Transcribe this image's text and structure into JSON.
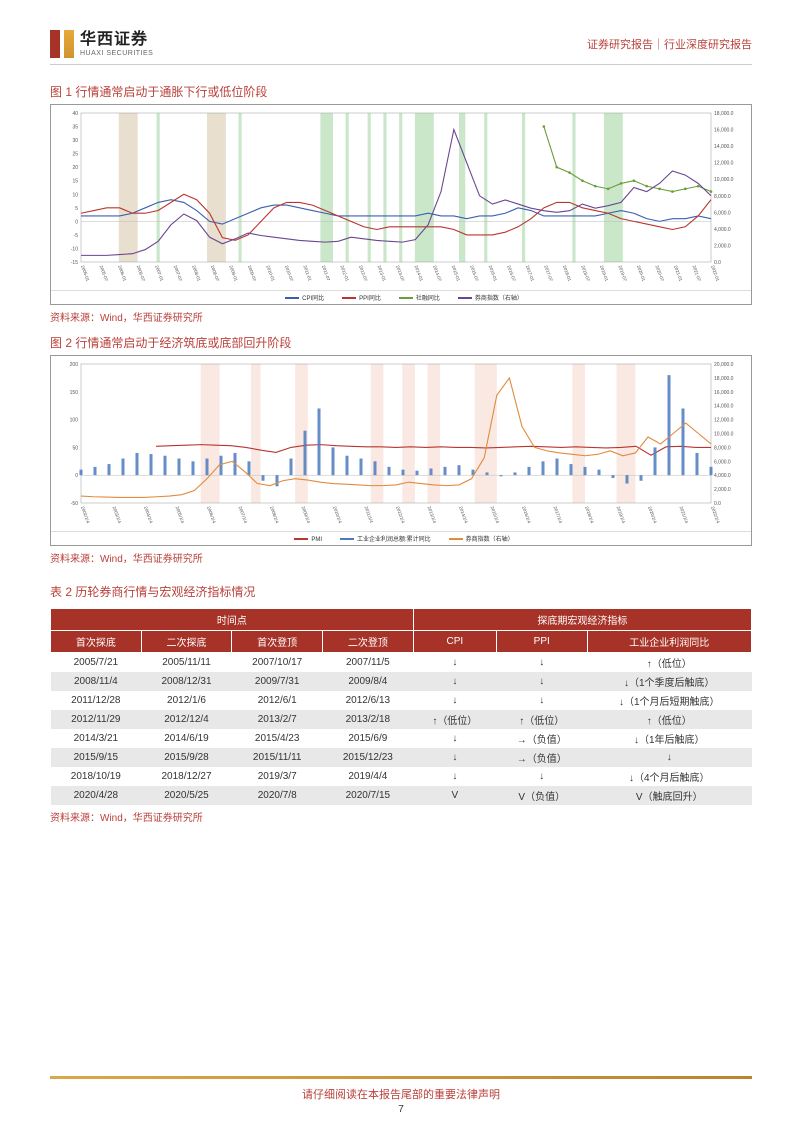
{
  "header": {
    "logo_cn": "华西证券",
    "logo_en": "HUAXI SECURITIES",
    "doc_type": "证券研究报告｜行业深度研究报告"
  },
  "fig1": {
    "title": "图 1  行情通常启动于通胀下行或低位阶段",
    "source": "资料来源：Wind，华西证券研究所",
    "left_axis": {
      "min": -15,
      "max": 40,
      "ticks": [
        -15,
        -10,
        -5,
        0,
        5,
        10,
        15,
        20,
        25,
        30,
        35,
        40
      ]
    },
    "right_axis": {
      "min": 0,
      "max": 18000,
      "ticks": [
        0,
        2000,
        4000,
        6000,
        8000,
        10000,
        12000,
        14000,
        16000,
        18000
      ]
    },
    "x_labels": [
      "2005-01",
      "2005-07",
      "2006-01",
      "2006-07",
      "2007-01",
      "2007-07",
      "2008-01",
      "2008-07",
      "2009-01",
      "2009-07",
      "2010-01",
      "2010-07",
      "2011-01",
      "2011-07",
      "2012-01",
      "2012-07",
      "2013-01",
      "2013-07",
      "2014-01",
      "2014-07",
      "2015-01",
      "2015-07",
      "2016-01",
      "2016-07",
      "2017-01",
      "2017-07",
      "2018-01",
      "2018-07",
      "2019-01",
      "2019-07",
      "2020-01",
      "2020-07",
      "2021-01",
      "2021-07",
      "2022-01"
    ],
    "shade_brown": [
      [
        0.06,
        0.09
      ],
      [
        0.2,
        0.23
      ]
    ],
    "shade_green": [
      [
        0.12,
        0.125
      ],
      [
        0.25,
        0.255
      ],
      [
        0.38,
        0.4
      ],
      [
        0.42,
        0.425
      ],
      [
        0.455,
        0.46
      ],
      [
        0.48,
        0.485
      ],
      [
        0.505,
        0.51
      ],
      [
        0.53,
        0.56
      ],
      [
        0.6,
        0.61
      ],
      [
        0.64,
        0.645
      ],
      [
        0.7,
        0.705
      ],
      [
        0.78,
        0.785
      ],
      [
        0.83,
        0.86
      ]
    ],
    "series": {
      "cpi": {
        "color": "#3a5fb0",
        "label": "CPI同比",
        "values": [
          2,
          2,
          2,
          2,
          3,
          5,
          7,
          8,
          7,
          4,
          0,
          -1,
          1,
          3,
          5,
          6,
          6,
          5,
          4,
          3,
          2,
          2,
          2,
          2,
          2,
          2,
          2,
          3,
          2,
          2,
          1,
          2,
          2,
          3,
          5,
          4,
          2,
          2,
          2,
          2,
          2,
          3,
          4,
          3,
          1,
          0,
          1,
          1,
          2,
          1
        ]
      },
      "ppi": {
        "color": "#b93530",
        "label": "PPI同比",
        "values": [
          3,
          4,
          5,
          5,
          3,
          3,
          4,
          7,
          10,
          8,
          3,
          -6,
          -7,
          -5,
          0,
          5,
          7,
          7,
          6,
          4,
          2,
          0,
          -2,
          -3,
          -2,
          -2,
          -2,
          -2,
          -2,
          -3,
          -5,
          -5,
          -5,
          -4,
          -2,
          1,
          5,
          7,
          7,
          5,
          4,
          3,
          1,
          0,
          -1,
          -2,
          -3,
          -2,
          2,
          8
        ]
      },
      "social": {
        "color": "#6a9e3a",
        "label": "社融同比",
        "values": [
          null,
          null,
          null,
          null,
          null,
          null,
          null,
          null,
          null,
          null,
          null,
          null,
          null,
          null,
          null,
          null,
          null,
          null,
          null,
          null,
          null,
          null,
          null,
          null,
          null,
          null,
          null,
          null,
          null,
          null,
          null,
          null,
          null,
          null,
          null,
          null,
          35,
          20,
          18,
          15,
          13,
          12,
          14,
          15,
          13,
          12,
          11,
          12,
          13,
          11
        ]
      },
      "index": {
        "color": "#6a4691",
        "label": "券商指数（右轴）",
        "values": [
          800,
          800,
          800,
          900,
          1000,
          1500,
          2500,
          4500,
          5800,
          5000,
          3000,
          2200,
          2800,
          3500,
          3200,
          3000,
          2800,
          2600,
          2500,
          2400,
          2500,
          3000,
          2800,
          2600,
          2500,
          2400,
          2700,
          4500,
          8500,
          16000,
          12000,
          8000,
          7000,
          7500,
          7000,
          6500,
          6200,
          6000,
          6200,
          7000,
          6500,
          6800,
          7200,
          9000,
          8500,
          9500,
          11000,
          10500,
          9500,
          8000
        ]
      }
    },
    "legend_items": [
      "CPI同比",
      "PPI同比",
      "社融同比",
      "券商指数（右轴）"
    ]
  },
  "fig2": {
    "title": "图 2  行情通常启动于经济筑底或底部回升阶段",
    "source": "资料来源：Wind，华西证券研究所",
    "left_axis": {
      "min": -50,
      "max": 200,
      "ticks": [
        -50,
        0,
        50,
        100,
        150,
        200
      ]
    },
    "right_axis": {
      "min": 0,
      "max": 20000,
      "ticks": [
        0,
        2000,
        4000,
        6000,
        8000,
        10000,
        12000,
        14000,
        16000,
        18000,
        20000
      ]
    },
    "x_labels": [
      "2002/1/4",
      "2003/1/4",
      "2004/1/4",
      "2005/1/4",
      "2006/1/4",
      "2007/1/4",
      "2008/1/4",
      "2009/1/4",
      "2010/1/4",
      "2011/1/4",
      "2012/1/4",
      "2013/1/4",
      "2014/1/4",
      "2015/1/4",
      "2016/1/4",
      "2017/1/4",
      "2018/1/4",
      "2019/1/4",
      "2020/1/4",
      "2021/1/4",
      "2022/1/4"
    ],
    "shade_pink": [
      [
        0.19,
        0.22
      ],
      [
        0.27,
        0.285
      ],
      [
        0.34,
        0.36
      ],
      [
        0.46,
        0.48
      ],
      [
        0.51,
        0.53
      ],
      [
        0.55,
        0.57
      ],
      [
        0.625,
        0.66
      ],
      [
        0.78,
        0.8
      ],
      [
        0.85,
        0.88
      ]
    ],
    "series": {
      "pmi": {
        "color": "#b93530",
        "label": "PMI",
        "values": [
          null,
          null,
          null,
          null,
          null,
          52,
          53,
          54,
          55,
          54,
          53,
          50,
          45,
          41,
          50,
          54,
          55,
          53,
          52,
          51,
          51,
          50,
          51,
          50,
          51,
          50,
          50,
          49,
          50,
          51,
          52,
          51,
          50,
          51,
          50,
          49,
          50,
          52,
          36,
          51,
          52,
          50,
          50
        ]
      },
      "profit": {
        "color": "#4a7ac0",
        "label": "工业企业利润总额:累计同比",
        "type": "bar",
        "values": [
          10,
          15,
          20,
          30,
          40,
          38,
          35,
          30,
          25,
          30,
          35,
          40,
          25,
          -10,
          -20,
          30,
          80,
          120,
          50,
          35,
          30,
          25,
          15,
          10,
          8,
          12,
          15,
          18,
          10,
          5,
          -2,
          5,
          15,
          25,
          30,
          20,
          15,
          10,
          -5,
          -15,
          -10,
          50,
          180,
          120,
          40,
          15
        ]
      },
      "index": {
        "color": "#e08b3e",
        "label": "券商指数（右轴）",
        "values": [
          1000,
          900,
          850,
          800,
          800,
          800,
          900,
          1000,
          1200,
          1800,
          3500,
          5500,
          6000,
          4500,
          2800,
          2500,
          3200,
          3500,
          3300,
          3000,
          2800,
          2700,
          2600,
          2500,
          2500,
          2600,
          3000,
          2800,
          2600,
          2500,
          2600,
          3500,
          6500,
          15500,
          18000,
          11000,
          8000,
          7500,
          7200,
          7000,
          6800,
          7000,
          7500,
          6800,
          7200,
          9500,
          8500,
          10000,
          11500,
          10000,
          8500
        ]
      }
    },
    "legend_items": [
      "PMI",
      "工业企业利润总额:累计同比",
      "券商指数（右轴）"
    ]
  },
  "table2": {
    "title": "表 2 历轮券商行情与宏观经济指标情况",
    "source": "资料来源：Wind，华西证券研究所",
    "group_headers": [
      "时间点",
      "探底期宏观经济指标"
    ],
    "headers": [
      "首次探底",
      "二次探底",
      "首次登顶",
      "二次登顶",
      "CPI",
      "PPI",
      "工业企业利润同比"
    ],
    "rows": [
      [
        "2005/7/21",
        "2005/11/11",
        "2007/10/17",
        "2007/11/5",
        "↓",
        "↓",
        "↑（低位）"
      ],
      [
        "2008/11/4",
        "2008/12/31",
        "2009/7/31",
        "2009/8/4",
        "↓",
        "↓",
        "↓（1个季度后触底）"
      ],
      [
        "2011/12/28",
        "2012/1/6",
        "2012/6/1",
        "2012/6/13",
        "↓",
        "↓",
        "↓（1个月后短期触底）"
      ],
      [
        "2012/11/29",
        "2012/12/4",
        "2013/2/7",
        "2013/2/18",
        "↑（低位）",
        "↑（低位）",
        "↑（低位）"
      ],
      [
        "2014/3/21",
        "2014/6/19",
        "2015/4/23",
        "2015/6/9",
        "↓",
        "→（负值）",
        "↓（1年后触底）"
      ],
      [
        "2015/9/15",
        "2015/9/28",
        "2015/11/11",
        "2015/12/23",
        "↓",
        "→（负值）",
        "↓"
      ],
      [
        "2018/10/19",
        "2018/12/27",
        "2019/3/7",
        "2019/4/4",
        "↓",
        "↓",
        "↓（4个月后触底）"
      ],
      [
        "2020/4/28",
        "2020/5/25",
        "2020/7/8",
        "2020/7/15",
        "V",
        "V（负值）",
        "V（触底回升）"
      ]
    ]
  },
  "footer": {
    "disclaimer": "请仔细阅读在本报告尾部的重要法律声明",
    "page": "7"
  },
  "colors": {
    "brand_red": "#b9403a",
    "header_red": "#a73328",
    "gold": "#d0942f",
    "grid": "#e0e0e0"
  }
}
